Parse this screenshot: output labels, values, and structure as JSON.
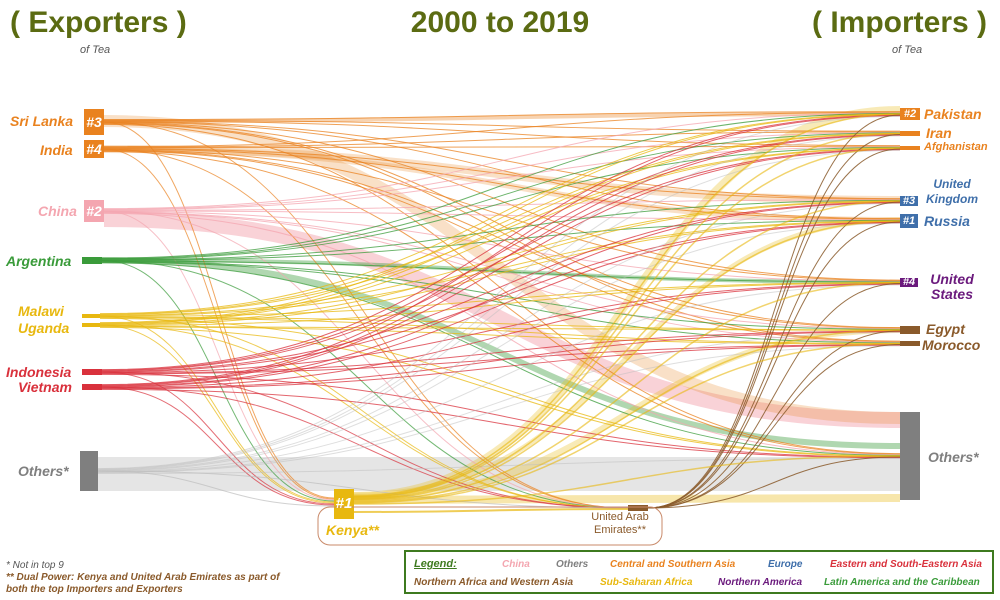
{
  "title": "2000 to 2019",
  "exporters_heading": "( Exporters )",
  "exporters_sub": "of Tea",
  "importers_heading": "( Importers )",
  "importers_sub": "of Tea",
  "exporters": [
    {
      "id": "sri_lanka",
      "label": "Sri Lanka",
      "rank": "#3",
      "group": "central_south_asia"
    },
    {
      "id": "india",
      "label": "India",
      "rank": "#4",
      "group": "central_south_asia"
    },
    {
      "id": "china",
      "label": "China",
      "rank": "#2",
      "group": "china"
    },
    {
      "id": "argentina",
      "label": "Argentina",
      "rank": "",
      "group": "latin_america"
    },
    {
      "id": "malawi",
      "label": "Malawi",
      "rank": "",
      "group": "sub_saharan_africa"
    },
    {
      "id": "uganda",
      "label": "Uganda",
      "rank": "",
      "group": "sub_saharan_africa"
    },
    {
      "id": "indonesia",
      "label": "Indonesia",
      "rank": "",
      "group": "east_southeast_asia"
    },
    {
      "id": "vietnam",
      "label": "Vietnam",
      "rank": "",
      "group": "east_southeast_asia"
    },
    {
      "id": "others",
      "label": "Others*",
      "rank": "",
      "group": "others"
    }
  ],
  "dual": [
    {
      "id": "kenya",
      "label": "Kenya**",
      "rank": "#1",
      "group": "sub_saharan_africa"
    },
    {
      "id": "uae",
      "label": "United Arab Emirates**",
      "rank": "",
      "group": "north_africa_west_asia"
    }
  ],
  "importers": [
    {
      "id": "pakistan",
      "label": "Pakistan",
      "rank": "#2",
      "group": "central_south_asia"
    },
    {
      "id": "iran",
      "label": "Iran",
      "rank": "",
      "group": "central_south_asia"
    },
    {
      "id": "afghanistan",
      "label": "Afghanistan",
      "rank": "",
      "group": "central_south_asia"
    },
    {
      "id": "uk",
      "label": "United Kingdom",
      "rank": "#3",
      "group": "europe"
    },
    {
      "id": "russia",
      "label": "Russia",
      "rank": "#1",
      "group": "europe"
    },
    {
      "id": "usa",
      "label": "United States",
      "rank": "#4",
      "group": "northern_america"
    },
    {
      "id": "egypt",
      "label": "Egypt",
      "rank": "",
      "group": "north_africa_west_asia"
    },
    {
      "id": "morocco",
      "label": "Morocco",
      "rank": "",
      "group": "north_africa_west_asia"
    },
    {
      "id": "others",
      "label": "Others*",
      "rank": "",
      "group": "others"
    }
  ],
  "colors": {
    "china": "#f4a6b0",
    "others": "#7f7f7f",
    "central_south_asia": "#e9821f",
    "europe": "#3f6faa",
    "east_southeast_asia": "#d9313c",
    "north_africa_west_asia": "#8a5a2b",
    "sub_saharan_africa": "#e8b80f",
    "northern_america": "#6b1a7d",
    "latin_america": "#3a9b3a",
    "title": "#5b6b12"
  },
  "notes": {
    "line1": "* Not in top 9",
    "line2": "** Dual Power: Kenya and United Arab Emirates as part of",
    "line3": "both the top Importers and Exporters"
  },
  "legend": {
    "heading": "Legend:",
    "items": [
      {
        "label": "China",
        "group": "china"
      },
      {
        "label": "Others",
        "group": "others"
      },
      {
        "label": "Central and Southern Asia",
        "group": "central_south_asia"
      },
      {
        "label": "Europe",
        "group": "europe"
      },
      {
        "label": "Eastern and South-Eastern Asia",
        "group": "east_southeast_asia"
      },
      {
        "label": "Northern Africa and Western Asia",
        "group": "north_africa_west_asia"
      },
      {
        "label": "Sub-Saharan Africa",
        "group": "sub_saharan_africa"
      },
      {
        "label": "Northern America",
        "group": "northern_america"
      },
      {
        "label": "Latin America and the Caribbean",
        "group": "latin_america"
      }
    ]
  }
}
